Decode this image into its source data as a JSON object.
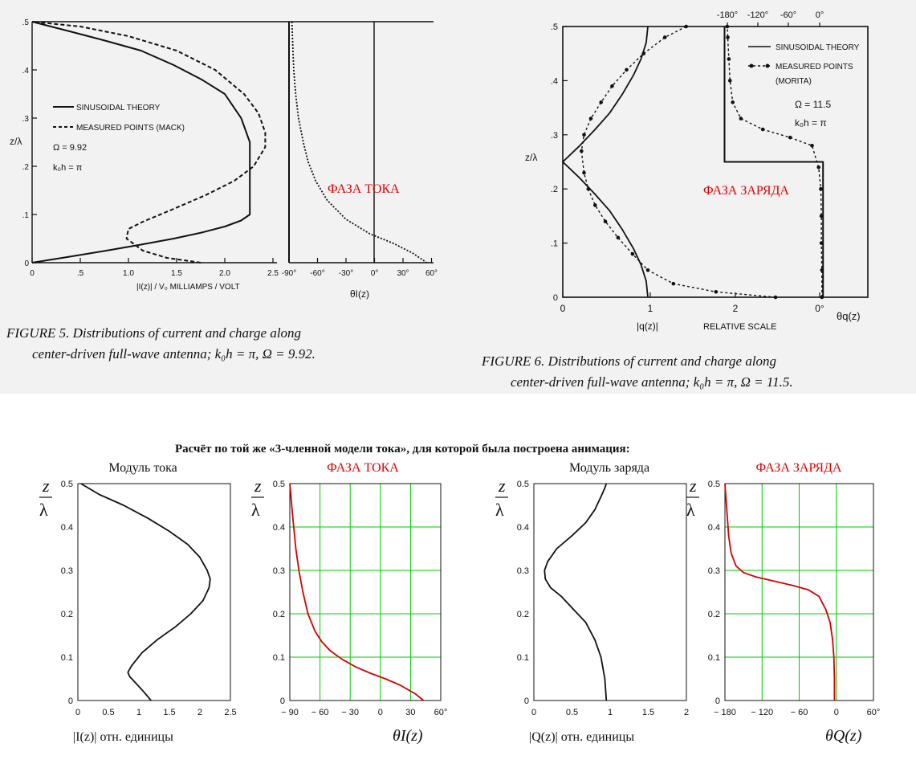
{
  "colors": {
    "top_background": "#f2f2f2",
    "black": "#111111",
    "red_curve": "#d40000",
    "red_label": "#e00000",
    "green_grid": "#00cc00"
  },
  "figure5": {
    "caption_line1": "FIGURE 5.  Distributions of current and charge along",
    "caption_line2": "center-driven full-wave antenna; k₀h = π, Ω = 9.92.",
    "legend": [
      "SINUSOIDAL THEORY",
      "MEASURED POINTS (MACK)"
    ],
    "omega": "Ω = 9.92",
    "koh": "k₀h = π",
    "ylabel": "z/λ",
    "xlabel_current": "|I(z)| / V₀  MILLIAMPS / VOLT",
    "xlabel_phase": "θI(z)",
    "phase_label_red": "ФАЗА ТОКА",
    "x_ticks_current": [
      "0",
      ".5",
      "1.0",
      "1.5",
      "2.0",
      "2.5"
    ],
    "x_ticks_phase": [
      "-90°",
      "-60°",
      "-30°",
      "0°",
      "30°",
      "60°"
    ],
    "y_ticks": [
      "0",
      ".1",
      ".2",
      ".3",
      ".4",
      ".5"
    ]
  },
  "figure6": {
    "caption_line1": "FIGURE 6.  Distributions of current and charge along",
    "caption_line2": "center-driven full-wave antenna; k₀h = π, Ω = 11.5.",
    "legend": [
      "SINUSOIDAL THEORY",
      "MEASURED POINTS",
      "(MORITA)"
    ],
    "omega": "Ω = 11.5",
    "koh": "k₀h = π",
    "ylabel": "z/λ",
    "xlabel_charge": "|q(z)|",
    "xlabel_relative": "RELATIVE SCALE",
    "xlabel_phase": "θq(z)",
    "phase_label_red": "ФАЗА ЗАРЯДА",
    "x_ticks_bottom": [
      "0",
      "1",
      "2",
      "0°"
    ],
    "x_ticks_top": [
      "-180°",
      "-120°",
      "-60°",
      "0°"
    ],
    "y_ticks": [
      "0",
      ".1",
      ".2",
      ".3",
      ".4",
      ".5"
    ]
  },
  "bottom": {
    "header": "Расчёт по той же «3-членной модели тока»,   для которой была построена анимация:",
    "ylabel_num": "z",
    "ylabel_den": "λ",
    "y_ticks": [
      "0",
      "0.1",
      "0.2",
      "0.3",
      "0.4",
      "0.5"
    ]
  },
  "chart_data": [
    {
      "type": "line",
      "id": "fig5-current",
      "ylim": [
        0,
        0.5
      ],
      "xlim": [
        0,
        2.5
      ],
      "series": [
        {
          "name": "SINUSOIDAL THEORY",
          "style": "solid",
          "x": [
            0,
            0.39,
            0.77,
            1.13,
            1.47,
            1.76,
            2.0,
            2.17,
            2.26,
            2.26,
            2.17,
            2.0,
            1.76,
            1.47,
            1.13,
            0.77,
            0.39,
            0
          ],
          "y": [
            0,
            0.0125,
            0.025,
            0.0375,
            0.05,
            0.0625,
            0.075,
            0.0875,
            0.1,
            0.25,
            0.3,
            0.35,
            0.38,
            0.41,
            0.44,
            0.46,
            0.48,
            0.5
          ]
        },
        {
          "name": "MEASURED POINTS (MACK)",
          "style": "dashed",
          "x": [
            1.75,
            1.4,
            1.15,
            0.98,
            1.0,
            1.15,
            1.45,
            1.8,
            2.1,
            2.3,
            2.42,
            2.42,
            2.35,
            2.2,
            1.9,
            1.5,
            1.0,
            0.5,
            0
          ],
          "y": [
            0,
            0.01,
            0.025,
            0.05,
            0.07,
            0.085,
            0.11,
            0.14,
            0.17,
            0.2,
            0.24,
            0.27,
            0.31,
            0.35,
            0.4,
            0.44,
            0.47,
            0.49,
            0.5
          ]
        }
      ]
    },
    {
      "type": "line",
      "id": "fig5-phase",
      "ylim": [
        0,
        0.5
      ],
      "xlim": [
        -90,
        60
      ],
      "series": [
        {
          "name": "SINUSOIDAL THEORY",
          "style": "solid",
          "x": [
            -90,
            -90
          ],
          "y": [
            0,
            0.5
          ]
        },
        {
          "name": "MEASURED POINTS (MACK)",
          "style": "dotted",
          "x": [
            -87,
            -86,
            -85,
            -83,
            -80,
            -75,
            -70,
            -62,
            -50,
            -30,
            -5,
            20,
            40,
            55
          ],
          "y": [
            0.5,
            0.45,
            0.4,
            0.35,
            0.3,
            0.25,
            0.21,
            0.17,
            0.13,
            0.09,
            0.06,
            0.04,
            0.02,
            0
          ]
        }
      ]
    },
    {
      "type": "line",
      "id": "fig6-charge",
      "ylim": [
        0,
        0.5
      ],
      "xlim": [
        0,
        3
      ],
      "series": [
        {
          "name": "SINUSOIDAL THEORY",
          "style": "solid",
          "x": [
            1.0,
            0.98,
            0.92,
            0.83,
            0.7,
            0.55,
            0.38,
            0.2,
            0,
            0.2,
            0.38,
            0.55,
            0.7,
            0.83,
            0.92,
            0.98,
            1.0
          ],
          "y": [
            0,
            0.03,
            0.06,
            0.09,
            0.125,
            0.16,
            0.19,
            0.22,
            0.25,
            0.28,
            0.31,
            0.34,
            0.375,
            0.41,
            0.44,
            0.47,
            0.5
          ]
        },
        {
          "name": "MEASURED POINTS",
          "style": "dotted",
          "x": [
            2.5,
            1.8,
            1.3,
            1.0,
            0.82,
            0.65,
            0.5,
            0.38,
            0.3,
            0.25,
            0.22,
            0.25,
            0.33,
            0.45,
            0.58,
            0.75,
            0.95,
            1.2,
            1.45
          ],
          "y": [
            0,
            0.01,
            0.025,
            0.05,
            0.08,
            0.11,
            0.14,
            0.17,
            0.2,
            0.23,
            0.27,
            0.3,
            0.33,
            0.36,
            0.39,
            0.42,
            0.45,
            0.48,
            0.5
          ]
        }
      ]
    },
    {
      "type": "line",
      "id": "fig6-phase",
      "ylim": [
        0,
        0.5
      ],
      "xlim": [
        -210,
        10
      ],
      "series": [
        {
          "name": "SINUSOIDAL THEORY",
          "style": "solid",
          "x": [
            0,
            0,
            -180,
            -180
          ],
          "y": [
            0,
            0.25,
            0.25,
            0.5
          ]
        },
        {
          "name": "MEASURED POINTS",
          "style": "dotted",
          "x": [
            -2,
            -2,
            -3,
            -3,
            -4,
            -8,
            -20,
            -60,
            -110,
            -150,
            -165,
            -170,
            -172,
            -174,
            -175
          ],
          "y": [
            0,
            0.05,
            0.1,
            0.15,
            0.2,
            0.24,
            0.28,
            0.295,
            0.31,
            0.33,
            0.36,
            0.4,
            0.44,
            0.48,
            0.5
          ]
        }
      ]
    },
    {
      "type": "line",
      "id": "calc-current",
      "title": "Модуль тока",
      "xlabel": "|I(z)|  отн. единицы",
      "xlim": [
        0,
        2.5
      ],
      "ylim": [
        0,
        0.5
      ],
      "xticks": [
        "0",
        "0.5",
        "1",
        "1.5",
        "2",
        "2.5"
      ],
      "grid": false,
      "series": [
        {
          "x": [
            1.2,
            1.08,
            0.95,
            0.85,
            0.82,
            0.88,
            1.05,
            1.3,
            1.6,
            1.85,
            2.05,
            2.15,
            2.17,
            2.12,
            2.0,
            1.8,
            1.5,
            1.15,
            0.75,
            0.35,
            0.05
          ],
          "y": [
            0,
            0.02,
            0.04,
            0.055,
            0.065,
            0.08,
            0.11,
            0.14,
            0.17,
            0.2,
            0.23,
            0.26,
            0.28,
            0.3,
            0.33,
            0.36,
            0.39,
            0.42,
            0.45,
            0.475,
            0.5
          ]
        }
      ]
    },
    {
      "type": "line",
      "id": "calc-phase-current",
      "title": "ФАЗА ТОКА",
      "xlabel": "θI(z)",
      "xlim": [
        -90,
        60
      ],
      "ylim": [
        0,
        0.5
      ],
      "xticks": [
        "− 90",
        "− 60",
        "− 30",
        "0",
        "30",
        "60°"
      ],
      "grid": true,
      "series": [
        {
          "x": [
            43,
            35,
            20,
            5,
            -10,
            -25,
            -38,
            -50,
            -58,
            -65,
            -72,
            -77,
            -81,
            -84,
            -87,
            -88.5,
            -90
          ],
          "y": [
            0,
            0.015,
            0.035,
            0.05,
            0.063,
            0.078,
            0.095,
            0.115,
            0.135,
            0.16,
            0.2,
            0.25,
            0.3,
            0.35,
            0.42,
            0.46,
            0.5
          ]
        }
      ]
    },
    {
      "type": "line",
      "id": "calc-charge",
      "title": "Модуль заряда",
      "xlabel": "|Q(z)|  отн. единицы",
      "xlim": [
        0,
        2
      ],
      "ylim": [
        0,
        0.5
      ],
      "xticks": [
        "0",
        "0.5",
        "1",
        "1.5",
        "2"
      ],
      "grid": false,
      "series": [
        {
          "x": [
            0.95,
            0.93,
            0.88,
            0.8,
            0.68,
            0.52,
            0.36,
            0.22,
            0.15,
            0.14,
            0.18,
            0.3,
            0.5,
            0.68,
            0.8,
            0.88,
            0.93,
            0.95
          ],
          "y": [
            0,
            0.05,
            0.1,
            0.14,
            0.18,
            0.21,
            0.24,
            0.26,
            0.28,
            0.3,
            0.32,
            0.35,
            0.38,
            0.41,
            0.44,
            0.47,
            0.49,
            0.5
          ]
        }
      ]
    },
    {
      "type": "line",
      "id": "calc-phase-charge",
      "title": "ФАЗА ЗАРЯДА",
      "xlabel": "θQ(z)",
      "xlim": [
        -180,
        60
      ],
      "ylim": [
        0,
        0.5
      ],
      "xticks": [
        "− 180",
        "− 120",
        "− 60",
        "0",
        "60°"
      ],
      "grid": true,
      "series": [
        {
          "x": [
            -3,
            -3,
            -4,
            -6,
            -10,
            -17,
            -28,
            -45,
            -70,
            -100,
            -130,
            -150,
            -162,
            -170,
            -174,
            -176,
            -178,
            -180
          ],
          "y": [
            0,
            0.05,
            0.1,
            0.14,
            0.18,
            0.21,
            0.24,
            0.255,
            0.265,
            0.275,
            0.285,
            0.295,
            0.31,
            0.34,
            0.38,
            0.42,
            0.46,
            0.5
          ]
        }
      ]
    }
  ]
}
